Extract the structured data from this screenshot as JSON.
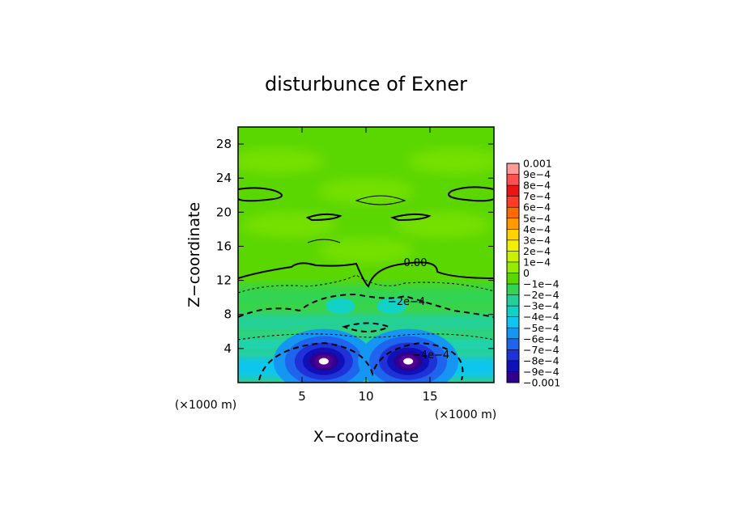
{
  "chart_data": {
    "type": "heatmap",
    "title": "disturbunce of Exner",
    "xlabel": "X−coordinate",
    "ylabel": "Z−coordinate",
    "x_unit": "(×1000 m)",
    "y_unit": "(×1000 m)",
    "xlim": [
      0,
      20
    ],
    "ylim": [
      0,
      30
    ],
    "x_ticks": [
      5,
      10,
      15
    ],
    "y_ticks": [
      4,
      8,
      12,
      16,
      20,
      24,
      28
    ],
    "colorbar": {
      "labels": [
        "0.001",
        "9e−4",
        "8e−4",
        "7e−4",
        "6e−4",
        "5e−4",
        "4e−4",
        "3e−4",
        "2e−4",
        "1e−4",
        "0",
        "−1e−4",
        "−2e−4",
        "−3e−4",
        "−4e−4",
        "−5e−4",
        "−6e−4",
        "−7e−4",
        "−8e−4",
        "−9e−4",
        "−0.001"
      ],
      "values": [
        0.001,
        0.0009,
        0.0008,
        0.0007,
        0.0006,
        0.0005,
        0.0004,
        0.0003,
        0.0002,
        0.0001,
        0,
        -0.0001,
        -0.0002,
        -0.0003,
        -0.0004,
        -0.0005,
        -0.0006,
        -0.0007,
        -0.0008,
        -0.0009,
        -0.001
      ],
      "colors": [
        "#ff9a9a",
        "#ff5050",
        "#ee1414",
        "#ff3c28",
        "#ff6a00",
        "#ff9a00",
        "#ffd200",
        "#f0f000",
        "#c8f000",
        "#96ec00",
        "#5ad600",
        "#33d455",
        "#22d09a",
        "#12d2c6",
        "#10c6ee",
        "#1496f2",
        "#1e64ec",
        "#1e32d8",
        "#1010b8",
        "#300090",
        "#560090"
      ]
    },
    "contour_labels": [
      "0.00",
      "−2e−4",
      "−4e−4"
    ],
    "features": [
      {
        "type": "minimum",
        "x": 6.7,
        "z": 2.5,
        "value": -0.001
      },
      {
        "type": "minimum",
        "x": 13.3,
        "z": 2.5,
        "value": -0.001
      }
    ]
  }
}
